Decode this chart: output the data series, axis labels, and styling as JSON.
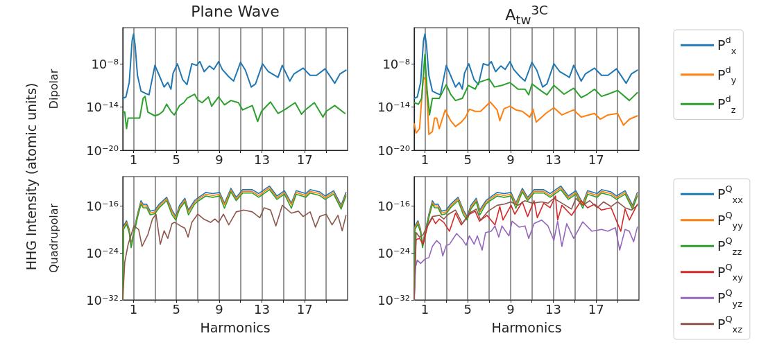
{
  "chart_data": [
    {
      "type": "line",
      "title": "Plane Wave",
      "ylabel": "Dipolar",
      "annotations": [
        "HHG Intensity (atomic units)"
      ],
      "log": "y",
      "grid": "x",
      "xlim": [
        0,
        21
      ],
      "xticks": [
        1,
        {
          "value": 3,
          "label": null
        },
        5,
        {
          "value": 7,
          "label": null
        },
        9,
        {
          "value": 11,
          "label": null
        },
        13,
        {
          "value": 15,
          "label": null
        },
        17,
        {
          "value": 19,
          "label": null
        }
      ],
      "ylim": [
        1e-20,
        0.001
      ],
      "yticks": [
        {
          "value": 1e-20,
          "label": "10⁻²⁰"
        },
        {
          "value": 1e-14,
          "label": "10⁻¹⁴"
        },
        {
          "value": 1e-08,
          "label": "10⁻⁸"
        }
      ],
      "series": [
        {
          "color": "#1f77b4",
          "x": [
            0,
            0.29,
            0.6,
            0.87,
            1,
            1.15,
            1.37,
            1.7,
            2.1,
            2.45,
            3.0,
            3.4,
            3.86,
            4.2,
            4.5,
            4.7,
            5.1,
            5.6,
            6.0,
            6.45,
            6.9,
            7.2,
            7.6,
            8.1,
            8.5,
            8.95,
            9.3,
            9.9,
            10.35,
            11.0,
            11.45,
            12.0,
            12.4,
            13.05,
            13.6,
            14.5,
            14.9,
            15.6,
            16.0,
            16.85,
            17.5,
            18.1,
            18.9,
            19.8,
            20.3,
            20.85
          ],
          "values": [
            1.6e-13,
            2.5e-13,
            2.5e-11,
            1.6e-05,
            0.00013,
            4e-06,
            2.5e-10,
            1.6e-12,
            8e-13,
            5e-13,
            6e-09,
            2.5e-10,
            6e-12,
            2.5e-11,
            3e-12,
            5e-10,
            1e-08,
            6e-11,
            1.3e-11,
            1e-08,
            6e-09,
            2e-08,
            8e-10,
            5e-09,
            1.6e-09,
            2e-08,
            1.6e-09,
            1.6e-10,
            4e-11,
            1.6e-08,
            1.3e-09,
            6e-12,
            1.6e-11,
            1e-08,
            8e-10,
            1.3e-10,
            6e-09,
            4e-11,
            4e-10,
            2.5e-09,
            2.5e-10,
            2.5e-10,
            2e-09,
            2e-11,
            4e-10,
            1.3e-09
          ]
        },
        {
          "color": "#2ca02c",
          "x": [
            0,
            0.18,
            0.35,
            0.5,
            1.58,
            1.9,
            2.08,
            2.34,
            3.0,
            3.4,
            3.75,
            4.1,
            4.5,
            4.8,
            5.3,
            5.7,
            6.0,
            6.7,
            7.0,
            7.4,
            8.0,
            8.3,
            8.95,
            9.5,
            10.1,
            10.8,
            11.2,
            12.1,
            12.6,
            12.95,
            13.8,
            14.5,
            15.1,
            16.1,
            16.7,
            17.05,
            17.9,
            18.7,
            19.0,
            19.8,
            20.75
          ],
          "values": [
            2.5e-15,
            2e-15,
            1e-17,
            3e-16,
            3e-16,
            1.6e-13,
            3e-13,
            2e-15,
            6e-16,
            1e-15,
            2.5e-15,
            2.5e-14,
            2.5e-15,
            8e-16,
            1.6e-14,
            4e-14,
            1.6e-13,
            6e-13,
            1e-13,
            4e-14,
            2.5e-13,
            1.3e-14,
            2.5e-13,
            2e-14,
            8e-14,
            4e-14,
            4e-15,
            1.6e-14,
            1e-16,
            2.5e-15,
            5e-14,
            1.3e-15,
            4e-15,
            4e-14,
            1e-15,
            4e-15,
            4e-14,
            4e-16,
            2.5e-15,
            1.6e-14,
            1.3e-15
          ]
        }
      ]
    },
    {
      "type": "line",
      "title": "A$_{tw}$$^{3C}$",
      "log": "y",
      "grid": "x",
      "legend": "right",
      "xlim": [
        0,
        21
      ],
      "xticks": [
        1,
        {
          "value": 3,
          "label": null
        },
        5,
        {
          "value": 7,
          "label": null
        },
        9,
        {
          "value": 11,
          "label": null
        },
        13,
        {
          "value": 15,
          "label": null
        },
        17,
        {
          "value": 19,
          "label": null
        }
      ],
      "ylim": [
        1e-20,
        0.001
      ],
      "yticks": [
        {
          "value": 1e-20,
          "label": "10⁻²⁰"
        },
        {
          "value": 1e-14,
          "label": "10⁻¹⁴"
        },
        {
          "value": 1e-08,
          "label": "10⁻⁸"
        }
      ],
      "series": [
        {
          "name": "P$^{d}$$_{x}$",
          "color": "#1f77b4",
          "x": [
            0,
            0.29,
            0.6,
            0.87,
            1,
            1.15,
            1.37,
            1.7,
            2.1,
            2.45,
            3.0,
            3.4,
            3.86,
            4.2,
            4.5,
            4.7,
            5.1,
            5.6,
            6.0,
            6.45,
            6.9,
            7.2,
            7.6,
            8.1,
            8.5,
            8.95,
            9.3,
            9.9,
            10.35,
            11.0,
            11.45,
            12.0,
            12.4,
            13.05,
            13.6,
            14.5,
            14.9,
            15.6,
            16.0,
            16.85,
            17.5,
            18.1,
            18.9,
            19.8,
            20.3,
            20.85
          ],
          "values": [
            1.6e-13,
            2.5e-13,
            2.5e-11,
            1.6e-05,
            0.00013,
            4e-06,
            2.5e-10,
            1.6e-12,
            8e-13,
            5e-13,
            6e-09,
            2.5e-10,
            6e-12,
            2.5e-11,
            3e-12,
            5e-10,
            1e-08,
            6e-11,
            1.3e-11,
            1e-08,
            6e-09,
            2e-08,
            8e-10,
            5e-09,
            1.6e-09,
            2e-08,
            1.6e-09,
            1.6e-10,
            4e-11,
            1.6e-08,
            1.3e-09,
            6e-12,
            1.6e-11,
            1e-08,
            8e-10,
            1.3e-10,
            6e-09,
            4e-11,
            4e-10,
            2.5e-09,
            2.5e-10,
            2.5e-10,
            2e-09,
            2e-11,
            4e-10,
            1.3e-09
          ]
        },
        {
          "name": "P$^{d}$$_{y}$",
          "color": "#ff7f0e",
          "x": [
            0,
            0.18,
            0.5,
            0.83,
            1,
            1.2,
            1.37,
            1.7,
            1.9,
            2.1,
            2.34,
            2.9,
            3.4,
            3.86,
            4.4,
            4.8,
            5.16,
            5.7,
            6.2,
            7.1,
            7.75,
            8.0,
            8.4,
            8.95,
            9.5,
            10.1,
            10.8,
            11.1,
            11.4,
            12.3,
            13.05,
            13.8,
            14.9,
            15.6,
            16.85,
            17.4,
            18.1,
            19.0,
            19.55,
            20.1,
            20.85
          ],
          "values": [
            5e-17,
            2.5e-18,
            1e-17,
            6e-11,
            1.3e-10,
            3e-13,
            1.6e-18,
            4e-18,
            3e-16,
            3e-16,
            1e-17,
            4e-15,
            1.3e-16,
            2e-17,
            8e-17,
            4e-16,
            5e-15,
            2.5e-15,
            2.5e-15,
            5e-14,
            4e-15,
            1.3e-16,
            6e-15,
            1.3e-14,
            4e-15,
            2.5e-15,
            4e-16,
            5e-15,
            8e-17,
            1.3e-15,
            8e-15,
            8e-16,
            4e-15,
            4e-16,
            1.3e-15,
            2e-16,
            8e-16,
            1.3e-15,
            3e-17,
            2e-16,
            6e-16
          ]
        },
        {
          "name": "P$^{d}$$_{z}$",
          "color": "#2ca02c",
          "x": [
            0,
            0.4,
            0.7,
            1,
            1.2,
            1.43,
            1.7,
            2.34,
            3.0,
            3.4,
            3.86,
            4.5,
            5.06,
            5.7,
            6.0,
            7.0,
            7.5,
            8.2,
            8.95,
            9.7,
            10.35,
            10.7,
            11.0,
            11.9,
            12.4,
            13.05,
            14.0,
            14.9,
            15.6,
            16.2,
            16.85,
            17.5,
            18.1,
            19.0,
            20.1,
            20.85
          ],
          "values": [
            4e-14,
            2.5e-14,
            1.6e-13,
            2e-07,
            3e-12,
            8e-16,
            1.6e-13,
            1.6e-13,
            1.3e-11,
            6e-13,
            8e-14,
            1.6e-13,
            1e-11,
            3e-12,
            2.5e-11,
            8e-11,
            6e-12,
            1e-11,
            2.5e-11,
            3e-12,
            3e-12,
            5e-13,
            1.6e-11,
            1.6e-12,
            5e-13,
            1e-11,
            6e-13,
            4e-12,
            2e-13,
            6e-13,
            3e-12,
            3e-13,
            6e-13,
            2e-12,
            8e-14,
            1e-12
          ]
        }
      ]
    },
    {
      "type": "line",
      "ylabel": "Quadrupolar",
      "xlabel": "Harmonics",
      "log": "y",
      "grid": "x",
      "xlim": [
        0,
        21
      ],
      "xticks": [
        1,
        {
          "value": 3,
          "label": null
        },
        5,
        {
          "value": 7,
          "label": null
        },
        9,
        {
          "value": 11,
          "label": null
        },
        13,
        {
          "value": 15,
          "label": null
        },
        17,
        {
          "value": 19,
          "label": null
        }
      ],
      "ylim": [
        1e-32,
        1e-11
      ],
      "yticks": [
        {
          "value": 1e-32,
          "label": "10⁻³²"
        },
        {
          "value": 1e-24,
          "label": "10⁻²⁴"
        },
        {
          "value": 1e-16,
          "label": "10⁻¹⁶"
        }
      ],
      "series": [
        {
          "color": "#1f77b4",
          "x": [
            0,
            0.07,
            0.35,
            0.6,
            0.78,
            1.04,
            1.37,
            1.7,
            1.9,
            2.23,
            2.56,
            3.0,
            3.4,
            4.1,
            4.6,
            4.95,
            5.3,
            5.8,
            6.13,
            6.7,
            7.1,
            7.75,
            8.4,
            9.05,
            9.5,
            10.1,
            10.6,
            11.2,
            12.1,
            12.7,
            13.7,
            14.4,
            15.1,
            15.75,
            16.2,
            17.1,
            17.5,
            18.4,
            18.9,
            19.7,
            20.4,
            20.85
          ],
          "values": [
            1e-32,
            4e-20,
            3e-19,
            1e-20,
            3e-23,
            6e-21,
            4e-18,
            8e-16,
            2e-16,
            2e-16,
            1.3e-17,
            2e-17,
            2e-16,
            3e-15,
            2e-17,
            1.6e-18,
            1.3e-16,
            2e-15,
            2e-17,
            8e-16,
            3e-15,
            2e-14,
            1.3e-14,
            2e-14,
            3e-16,
            1e-13,
            3e-15,
            6e-14,
            6e-14,
            1.3e-14,
            2.5e-13,
            5e-15,
            4e-14,
            3e-16,
            4e-14,
            1.3e-14,
            6e-14,
            2.5e-14,
            5e-15,
            4e-14,
            1.3e-16,
            2e-14
          ]
        },
        {
          "color": "#ff7f0e",
          "x": [
            0,
            0.07,
            0.35,
            0.6,
            0.78,
            1.04,
            1.37,
            1.7,
            1.9,
            2.23,
            2.56,
            3.0,
            3.4,
            4.1,
            4.6,
            4.95,
            5.3,
            5.8,
            6.13,
            6.7,
            7.1,
            7.75,
            8.4,
            9.05,
            9.5,
            10.1,
            10.6,
            11.2,
            12.1,
            12.7,
            13.7,
            14.4,
            15.1,
            15.75,
            16.2,
            17.1,
            17.5,
            18.4,
            18.9,
            19.7,
            20.4,
            20.85
          ],
          "values": [
            1e-32,
            2e-20,
            1.6e-19,
            5e-21,
            1.6e-23,
            3e-21,
            2e-18,
            4e-16,
            1e-16,
            1e-16,
            6e-18,
            1e-17,
            1e-16,
            1.6e-15,
            1e-17,
            8e-19,
            6e-17,
            1e-15,
            1e-17,
            4e-16,
            1.6e-15,
            1e-14,
            6e-15,
            1e-14,
            1.6e-16,
            5e-14,
            1.6e-15,
            3e-14,
            3e-14,
            6e-15,
            1.3e-13,
            2.5e-15,
            2e-14,
            1.6e-16,
            2e-14,
            6e-15,
            3e-14,
            1.3e-14,
            2.5e-15,
            2e-14,
            6e-17,
            1e-14
          ]
        },
        {
          "color": "#2ca02c",
          "x": [
            0,
            0.07,
            0.35,
            0.6,
            0.78,
            1.04,
            1.37,
            1.7,
            1.9,
            2.23,
            2.56,
            3.0,
            3.4,
            4.1,
            4.6,
            4.95,
            5.3,
            5.8,
            6.13,
            6.7,
            7.1,
            7.75,
            8.4,
            9.05,
            9.5,
            10.1,
            10.6,
            11.2,
            12.1,
            12.7,
            13.7,
            14.4,
            15.1,
            15.75,
            16.2,
            17.1,
            17.5,
            18.4,
            18.9,
            19.7,
            20.4,
            20.85
          ],
          "values": [
            1e-32,
            1e-20,
            8e-20,
            2.5e-21,
            8e-24,
            1.6e-21,
            1e-18,
            2e-16,
            5e-17,
            5e-17,
            3e-18,
            5e-18,
            5e-17,
            8e-16,
            3e-18,
            4e-19,
            3e-17,
            5e-16,
            3e-18,
            2e-16,
            8e-16,
            5e-15,
            3e-15,
            5e-15,
            4e-17,
            2.5e-14,
            8e-16,
            1.6e-14,
            1.6e-14,
            3e-15,
            6e-14,
            1.3e-15,
            1e-14,
            4e-17,
            1e-14,
            3e-15,
            1.6e-14,
            6e-15,
            1.3e-15,
            1e-14,
            3e-17,
            5e-15
          ]
        },
        {
          "color": "#8c564b",
          "x": [
            0,
            0.18,
            0.5,
            1.04,
            1.48,
            1.8,
            2.34,
            2.77,
            3.1,
            3.5,
            3.86,
            4.2,
            4.6,
            4.85,
            5.4,
            5.8,
            6.1,
            6.45,
            7.0,
            7.55,
            8.2,
            8.6,
            8.95,
            9.4,
            9.9,
            10.6,
            11.3,
            12.1,
            12.8,
            13.2,
            13.8,
            14.3,
            14.9,
            15.75,
            16.4,
            16.85,
            17.5,
            18.0,
            18.4,
            19.0,
            19.55,
            20.1,
            20.5,
            20.85
          ],
          "values": [
            1e-32,
            2.5e-26,
            3e-23,
            4e-20,
            1e-20,
            1.3e-23,
            1.3e-21,
            6e-19,
            4e-18,
            3e-23,
            6e-21,
            3e-22,
            1e-19,
            1.6e-19,
            4e-20,
            1.6e-20,
            5e-22,
            1.6e-19,
            4e-18,
            6e-19,
            1.6e-19,
            6e-19,
            1.6e-19,
            4e-18,
            6e-20,
            1e-17,
            2e-17,
            1e-17,
            1e-18,
            5e-17,
            2e-17,
            4e-20,
            1.3e-16,
            6e-18,
            1.3e-17,
            1.6e-18,
            1e-17,
            2.5e-20,
            1.6e-18,
            4e-18,
            6e-20,
            2.5e-18,
            6e-21,
            2.5e-18
          ]
        }
      ]
    },
    {
      "type": "line",
      "xlabel": "Harmonics",
      "log": "y",
      "grid": "x",
      "legend": "right",
      "xlim": [
        0,
        21
      ],
      "xticks": [
        1,
        {
          "value": 3,
          "label": null
        },
        5,
        {
          "value": 7,
          "label": null
        },
        9,
        {
          "value": 11,
          "label": null
        },
        13,
        {
          "value": 15,
          "label": null
        },
        17,
        {
          "value": 19,
          "label": null
        }
      ],
      "ylim": [
        1e-32,
        1e-11
      ],
      "yticks": [
        {
          "value": 1e-32,
          "label": "10⁻³²"
        },
        {
          "value": 1e-24,
          "label": "10⁻²⁴"
        },
        {
          "value": 1e-16,
          "label": "10⁻¹⁶"
        }
      ],
      "series": [
        {
          "name": "P$^{Q}$$_{xx}$",
          "color": "#1f77b4",
          "x": [
            0,
            0.07,
            0.35,
            0.6,
            0.78,
            1.04,
            1.37,
            1.7,
            1.9,
            2.23,
            2.56,
            3.0,
            3.4,
            4.1,
            4.6,
            4.95,
            5.3,
            5.8,
            6.13,
            6.7,
            7.1,
            7.75,
            8.4,
            9.05,
            9.5,
            10.1,
            10.6,
            11.2,
            12.1,
            12.7,
            13.7,
            14.4,
            15.1,
            15.75,
            16.2,
            17.1,
            17.5,
            18.4,
            18.9,
            19.7,
            20.4,
            20.85
          ],
          "values": [
            1e-32,
            4e-20,
            3e-19,
            1e-20,
            3e-23,
            6e-21,
            4e-18,
            8e-16,
            2e-16,
            2e-16,
            1.3e-17,
            2e-17,
            2e-16,
            3e-15,
            2e-17,
            1.6e-18,
            1.3e-16,
            2e-15,
            2e-17,
            8e-16,
            3e-15,
            2e-14,
            1.3e-14,
            2e-14,
            3e-16,
            1e-13,
            3e-15,
            6e-14,
            6e-14,
            1.3e-14,
            2.5e-13,
            5e-15,
            4e-14,
            3e-16,
            4e-14,
            1.3e-14,
            6e-14,
            2.5e-14,
            5e-15,
            4e-14,
            1.3e-16,
            2e-14
          ]
        },
        {
          "name": "P$^{Q}$$_{yy}$",
          "color": "#ff7f0e",
          "x": [
            0,
            0.07,
            0.35,
            0.6,
            0.78,
            1.04,
            1.37,
            1.7,
            1.9,
            2.23,
            2.56,
            3.0,
            3.4,
            4.1,
            4.6,
            4.95,
            5.3,
            5.8,
            6.13,
            6.7,
            7.1,
            7.75,
            8.4,
            9.05,
            9.5,
            10.1,
            10.6,
            11.2,
            12.1,
            12.7,
            13.7,
            14.4,
            15.1,
            15.75,
            16.2,
            17.1,
            17.5,
            18.4,
            18.9,
            19.7,
            20.4,
            20.85
          ],
          "values": [
            1e-32,
            2e-20,
            1.6e-19,
            5e-21,
            1.6e-23,
            3e-21,
            2e-18,
            4e-16,
            1e-16,
            1e-16,
            6e-18,
            1e-17,
            1e-16,
            1.6e-15,
            1e-17,
            8e-19,
            6e-17,
            1e-15,
            1e-17,
            4e-16,
            1.6e-15,
            1e-14,
            6e-15,
            1e-14,
            1.6e-16,
            5e-14,
            1.6e-15,
            3e-14,
            3e-14,
            6e-15,
            1.3e-13,
            2.5e-15,
            2e-14,
            1.6e-16,
            2e-14,
            6e-15,
            3e-14,
            1.3e-14,
            2.5e-15,
            2e-14,
            6e-17,
            1e-14
          ]
        },
        {
          "name": "P$^{Q}$$_{zz}$",
          "color": "#2ca02c",
          "x": [
            0,
            0.07,
            0.35,
            0.6,
            0.78,
            1.04,
            1.37,
            1.7,
            1.9,
            2.23,
            2.56,
            3.0,
            3.4,
            4.1,
            4.6,
            4.95,
            5.3,
            5.8,
            6.13,
            6.7,
            7.1,
            7.75,
            8.4,
            9.05,
            9.5,
            10.1,
            10.6,
            11.2,
            12.1,
            12.7,
            13.7,
            14.4,
            15.1,
            15.75,
            16.2,
            17.1,
            17.5,
            18.4,
            18.9,
            19.7,
            20.4,
            20.85
          ],
          "values": [
            1e-32,
            1e-20,
            8e-20,
            2.5e-21,
            8e-24,
            1.6e-21,
            1e-18,
            2e-16,
            5e-17,
            5e-17,
            3e-18,
            5e-18,
            5e-17,
            8e-16,
            3e-18,
            4e-19,
            3e-17,
            5e-16,
            3e-18,
            2e-16,
            8e-16,
            5e-15,
            3e-15,
            5e-15,
            4e-17,
            2.5e-14,
            8e-16,
            1.6e-14,
            1.6e-14,
            3e-15,
            6e-14,
            1.3e-15,
            1e-14,
            4e-17,
            1e-14,
            3e-15,
            1.6e-14,
            6e-15,
            1.3e-15,
            1e-14,
            3e-17,
            5e-15
          ]
        },
        {
          "name": "P$^{Q}$$_{xy}$",
          "color": "#d62728",
          "x": [
            0,
            0.18,
            0.5,
            0.83,
            1.26,
            1.7,
            2.0,
            2.34,
            2.77,
            3.3,
            3.86,
            4.4,
            5.16,
            5.7,
            6.1,
            6.8,
            7.55,
            8.0,
            8.3,
            9.05,
            9.4,
            10.1,
            10.6,
            11.2,
            11.5,
            12.1,
            12.7,
            13.2,
            13.4,
            13.8,
            14.7,
            15.6,
            16.2,
            16.85,
            17.5,
            18.4,
            19.3,
            19.7,
            20.1,
            20.85
          ],
          "values": [
            1e-32,
            2e-22,
            3e-22,
            3e-23,
            4e-20,
            1e-18,
            1e-19,
            6e-19,
            1.6e-19,
            5e-21,
            6e-18,
            6e-20,
            4e-18,
            1.3e-17,
            2.5e-19,
            2.5e-18,
            6e-20,
            8e-17,
            4e-19,
            1.3e-16,
            4e-18,
            5e-16,
            1.6e-18,
            8e-16,
            1e-18,
            3e-16,
            5e-17,
            5e-15,
            4e-19,
            1.3e-16,
            2.5e-18,
            8e-16,
            5e-17,
            2e-16,
            2e-17,
            5e-17,
            5e-21,
            3e-17,
            4e-19,
            2e-16
          ]
        },
        {
          "name": "P$^{Q}$$_{yz}$",
          "color": "#9467bd",
          "x": [
            0,
            0.13,
            0.29,
            0.6,
            1.04,
            1.37,
            1.7,
            2.1,
            2.45,
            2.67,
            3.0,
            3.3,
            3.96,
            4.5,
            4.85,
            5.16,
            5.6,
            5.9,
            6.35,
            6.67,
            7.2,
            7.55,
            7.9,
            8.2,
            8.85,
            9.15,
            9.8,
            10.35,
            10.7,
            11.2,
            11.9,
            12.5,
            13.05,
            13.4,
            13.8,
            14.25,
            14.9,
            15.75,
            16.6,
            17.5,
            18.1,
            18.8,
            19.2,
            19.7,
            20.1,
            20.5,
            20.85
          ],
          "values": [
            1e-32,
            4e-27,
            6e-26,
            1.6e-26,
            1e-25,
            1.6e-25,
            1.3e-23,
            1.3e-22,
            3e-23,
            3e-25,
            2e-23,
            3e-23,
            2e-21,
            2e-22,
            2e-23,
            8e-22,
            3e-23,
            8e-22,
            3e-24,
            3e-21,
            5e-21,
            4e-20,
            5e-22,
            4e-20,
            8e-22,
            2.5e-19,
            2.5e-20,
            4e-20,
            3e-22,
            1e-19,
            4e-19,
            4e-20,
            1.3e-22,
            2.5e-19,
            1.3e-23,
            1e-19,
            3e-22,
            2e-19,
            5e-21,
            1e-20,
            5e-21,
            2e-20,
            3e-24,
            1e-20,
            5e-21,
            8e-23,
            2.5e-20
          ]
        },
        {
          "name": "P$^{Q}$$_{xz}$",
          "color": "#8c564b",
          "x": [
            0,
            0.18,
            0.5,
            0.83,
            1.26,
            1.7,
            2.34,
            2.77,
            3.2,
            3.86,
            4.5,
            5.16,
            5.8,
            6.2,
            6.9,
            7.75,
            8.4,
            9.05,
            9.7,
            10.35,
            11.0,
            11.9,
            12.5,
            13.05,
            13.8,
            14.7,
            15.1,
            15.75,
            16.4,
            17.1,
            17.7,
            18.4,
            19.0,
            19.7,
            20.3,
            20.85
          ],
          "values": [
            1e-32,
            3e-21,
            5e-22,
            1.3e-21,
            6e-20,
            1.6e-18,
            2.5e-18,
            6e-19,
            4e-18,
            2e-17,
            1e-19,
            6e-18,
            3e-17,
            4e-19,
            1.3e-17,
            1.3e-16,
            2e-16,
            5e-16,
            1.3e-16,
            8e-16,
            3e-16,
            5e-16,
            3e-16,
            2e-15,
            3e-16,
            3e-17,
            2e-15,
            1.3e-16,
            8e-16,
            5e-17,
            5e-16,
            8e-17,
            5e-16,
            5e-17,
            2e-17,
            1.3e-16
          ]
        }
      ]
    }
  ]
}
